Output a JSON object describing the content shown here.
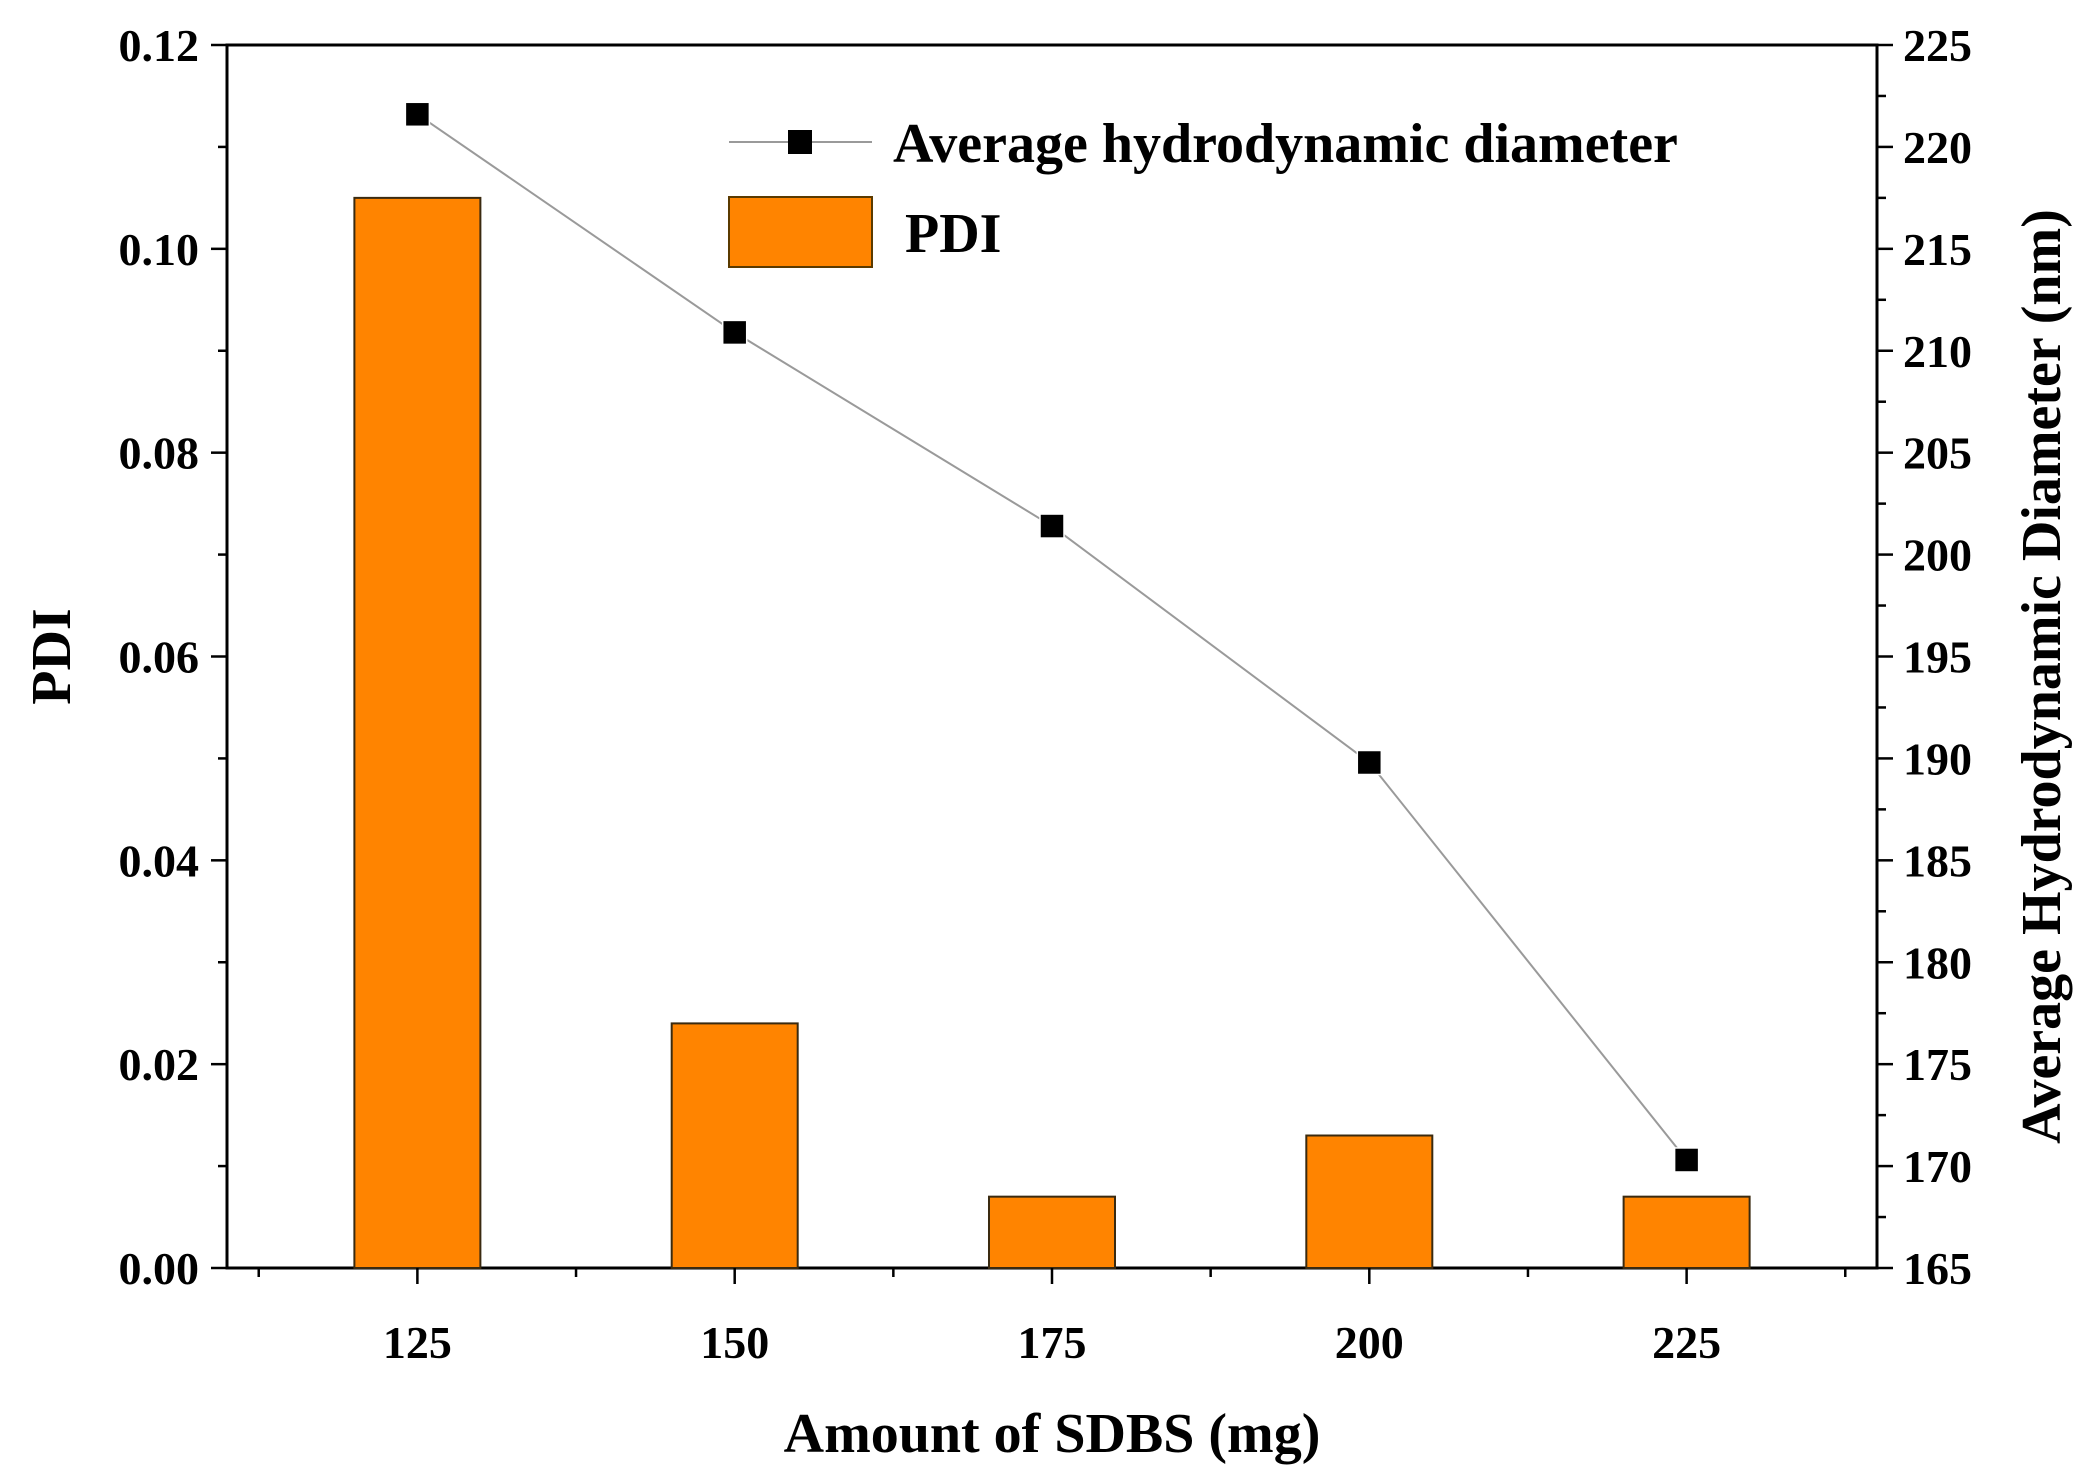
{
  "chart_data": {
    "type": "bar+line",
    "title": "",
    "xlabel": "Amount of SDBS (mg)",
    "ylabel_left": "PDI",
    "ylabel_right": "Average Hydrodynamic Diameter (nm)",
    "categories": [
      "125",
      "150",
      "175",
      "200",
      "225"
    ],
    "x": [
      125,
      150,
      175,
      200,
      225
    ],
    "xlim": [
      110,
      240
    ],
    "ylim_left": [
      0,
      0.12
    ],
    "ylim_right": [
      165,
      225
    ],
    "yticks_left": [
      "0.00",
      "0.02",
      "0.04",
      "0.06",
      "0.08",
      "0.10",
      "0.12"
    ],
    "yticks_right": [
      "165",
      "170",
      "175",
      "180",
      "185",
      "190",
      "195",
      "200",
      "205",
      "210",
      "215",
      "220",
      "225"
    ],
    "grid": false,
    "series": [
      {
        "name": "Average hydrodynamic diameter",
        "type": "line",
        "axis": "right",
        "marker": "square",
        "values": [
          221.6,
          210.9,
          201.4,
          189.8,
          170.3
        ],
        "color": "#000000",
        "line_color": "#9a9a9a"
      },
      {
        "name": "PDI",
        "type": "bar",
        "axis": "left",
        "values": [
          0.105,
          0.024,
          0.007,
          0.013,
          0.007
        ],
        "color": "#ff8400"
      }
    ],
    "legend": {
      "placement": "top-right",
      "entries": [
        "Average hydrodynamic diameter",
        "PDI"
      ]
    }
  }
}
